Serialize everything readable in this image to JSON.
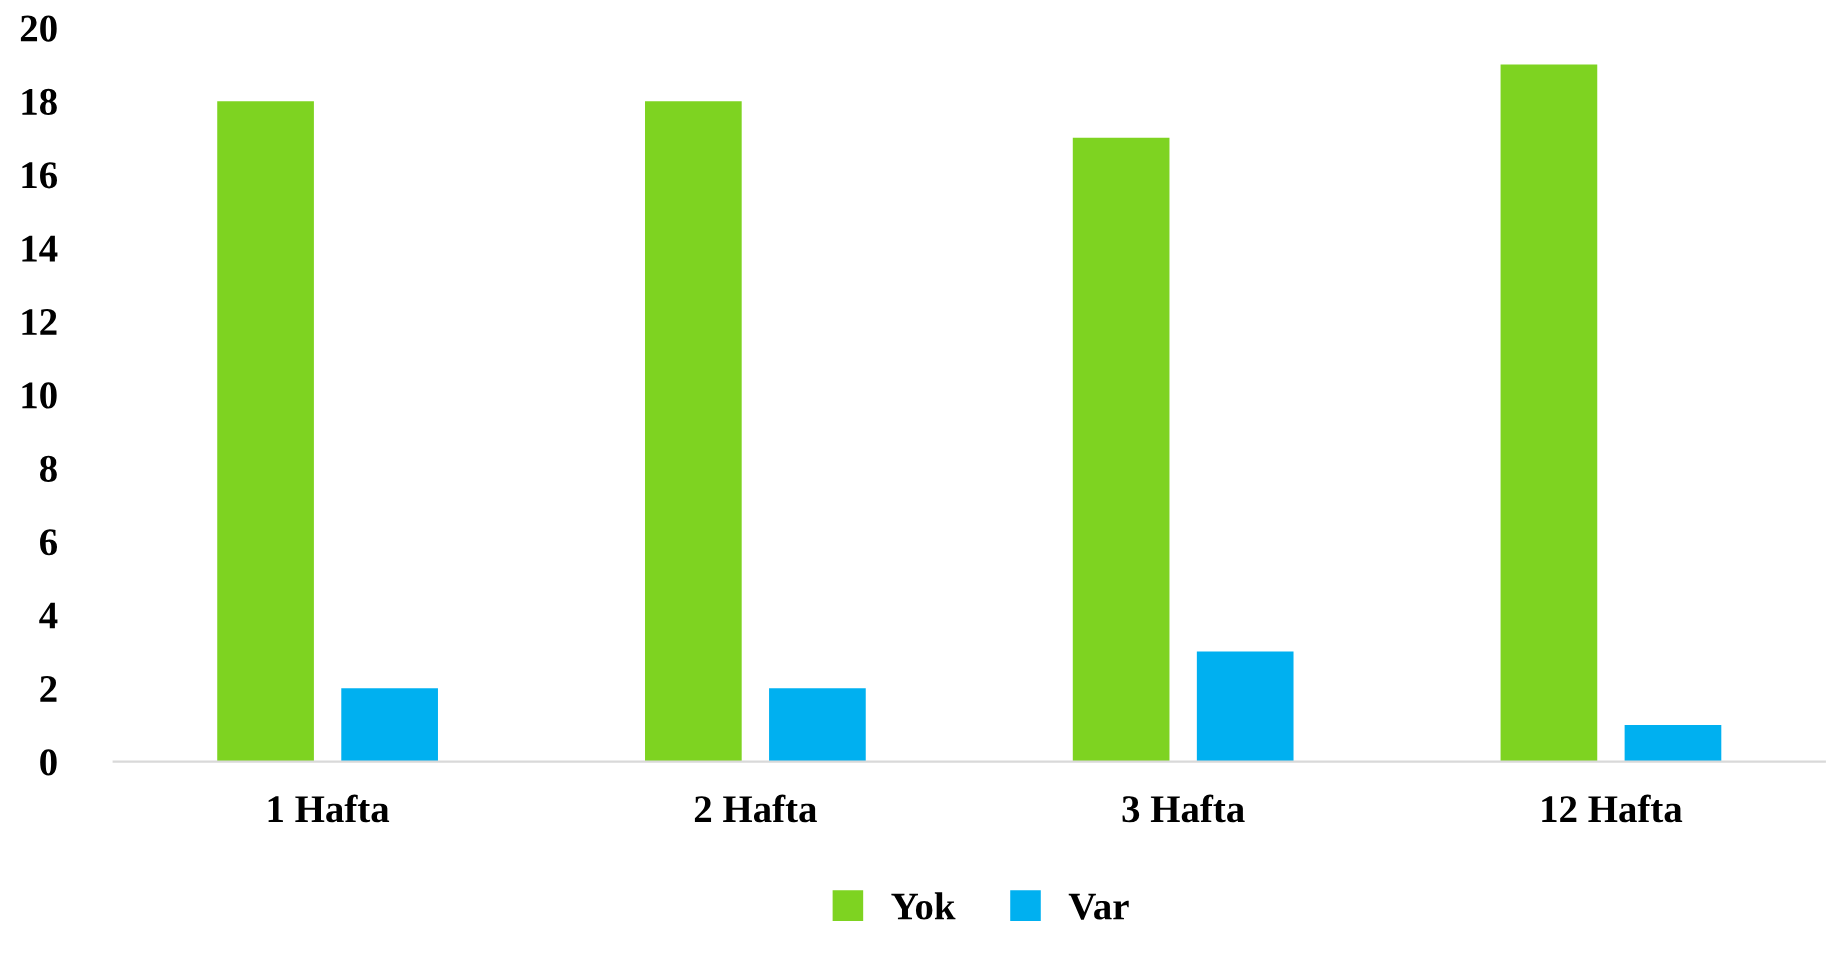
{
  "chart_data": {
    "type": "bar",
    "categories": [
      "1 Hafta",
      "2 Hafta",
      "3 Hafta",
      "12 Hafta"
    ],
    "series": [
      {
        "name": "Yok",
        "color": "#7ed321",
        "values": [
          18,
          18,
          17,
          19
        ]
      },
      {
        "name": "Var",
        "color": "#00b0f0",
        "values": [
          2,
          2,
          3,
          1
        ]
      }
    ],
    "ylim": [
      0,
      20
    ],
    "yticks": [
      0,
      2,
      4,
      6,
      8,
      10,
      12,
      14,
      16,
      18,
      20
    ],
    "grid": false,
    "legend": "bottom"
  }
}
